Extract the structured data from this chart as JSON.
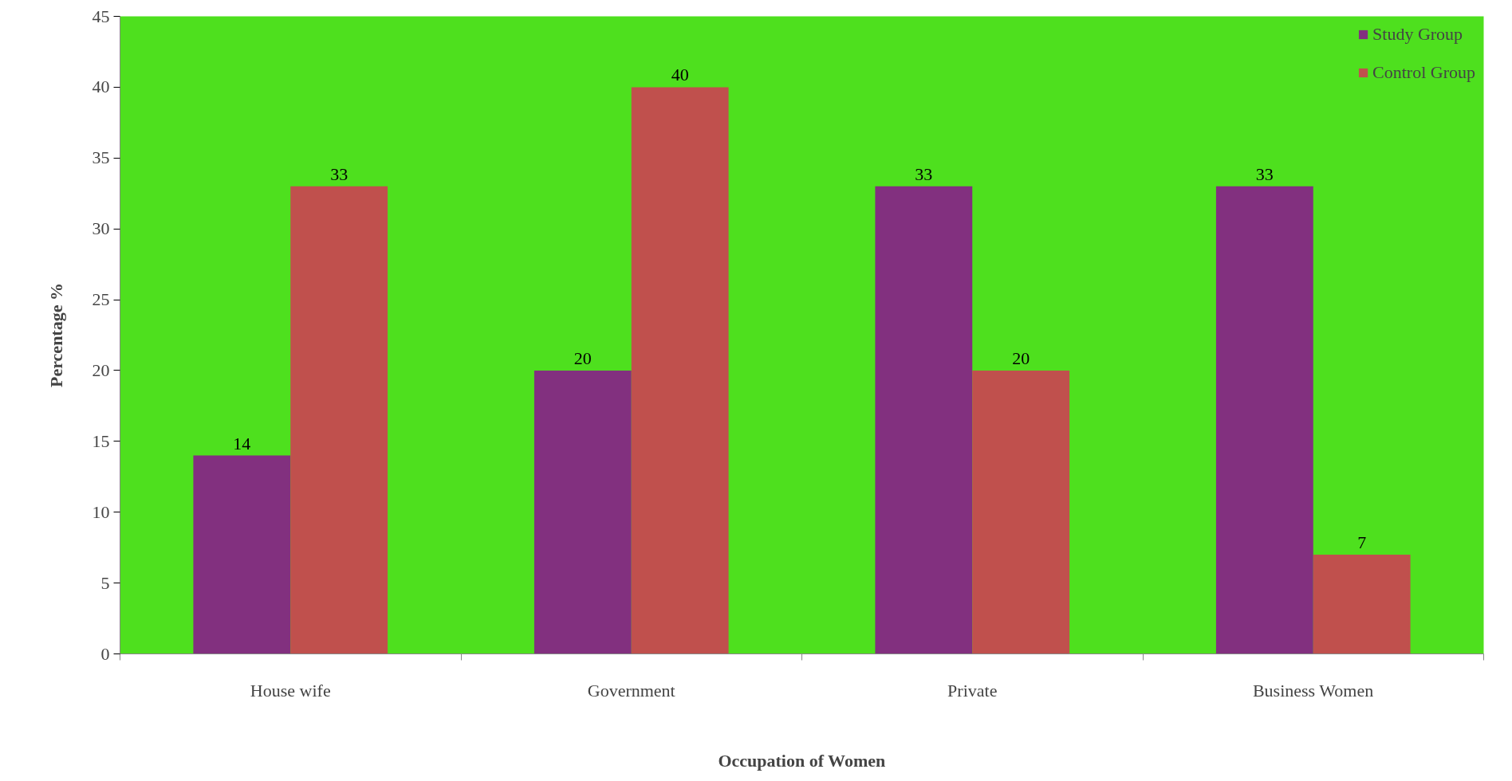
{
  "chart_data": {
    "type": "bar",
    "xlabel": "Occupation of Women",
    "ylabel": "Percentage %",
    "categories": [
      "House wife",
      "Government",
      "Private",
      "Business Women"
    ],
    "series": [
      {
        "name": "Study Group",
        "color": "#82307f",
        "values": [
          14,
          20,
          33,
          33
        ]
      },
      {
        "name": "Control Group",
        "color": "#c0504d",
        "values": [
          33,
          40,
          20,
          7
        ]
      }
    ],
    "ylim": [
      0,
      45
    ],
    "yticks": [
      0,
      5,
      10,
      15,
      20,
      25,
      30,
      35,
      40,
      45
    ],
    "grid": false,
    "legend": "top right",
    "data_labels": true
  }
}
